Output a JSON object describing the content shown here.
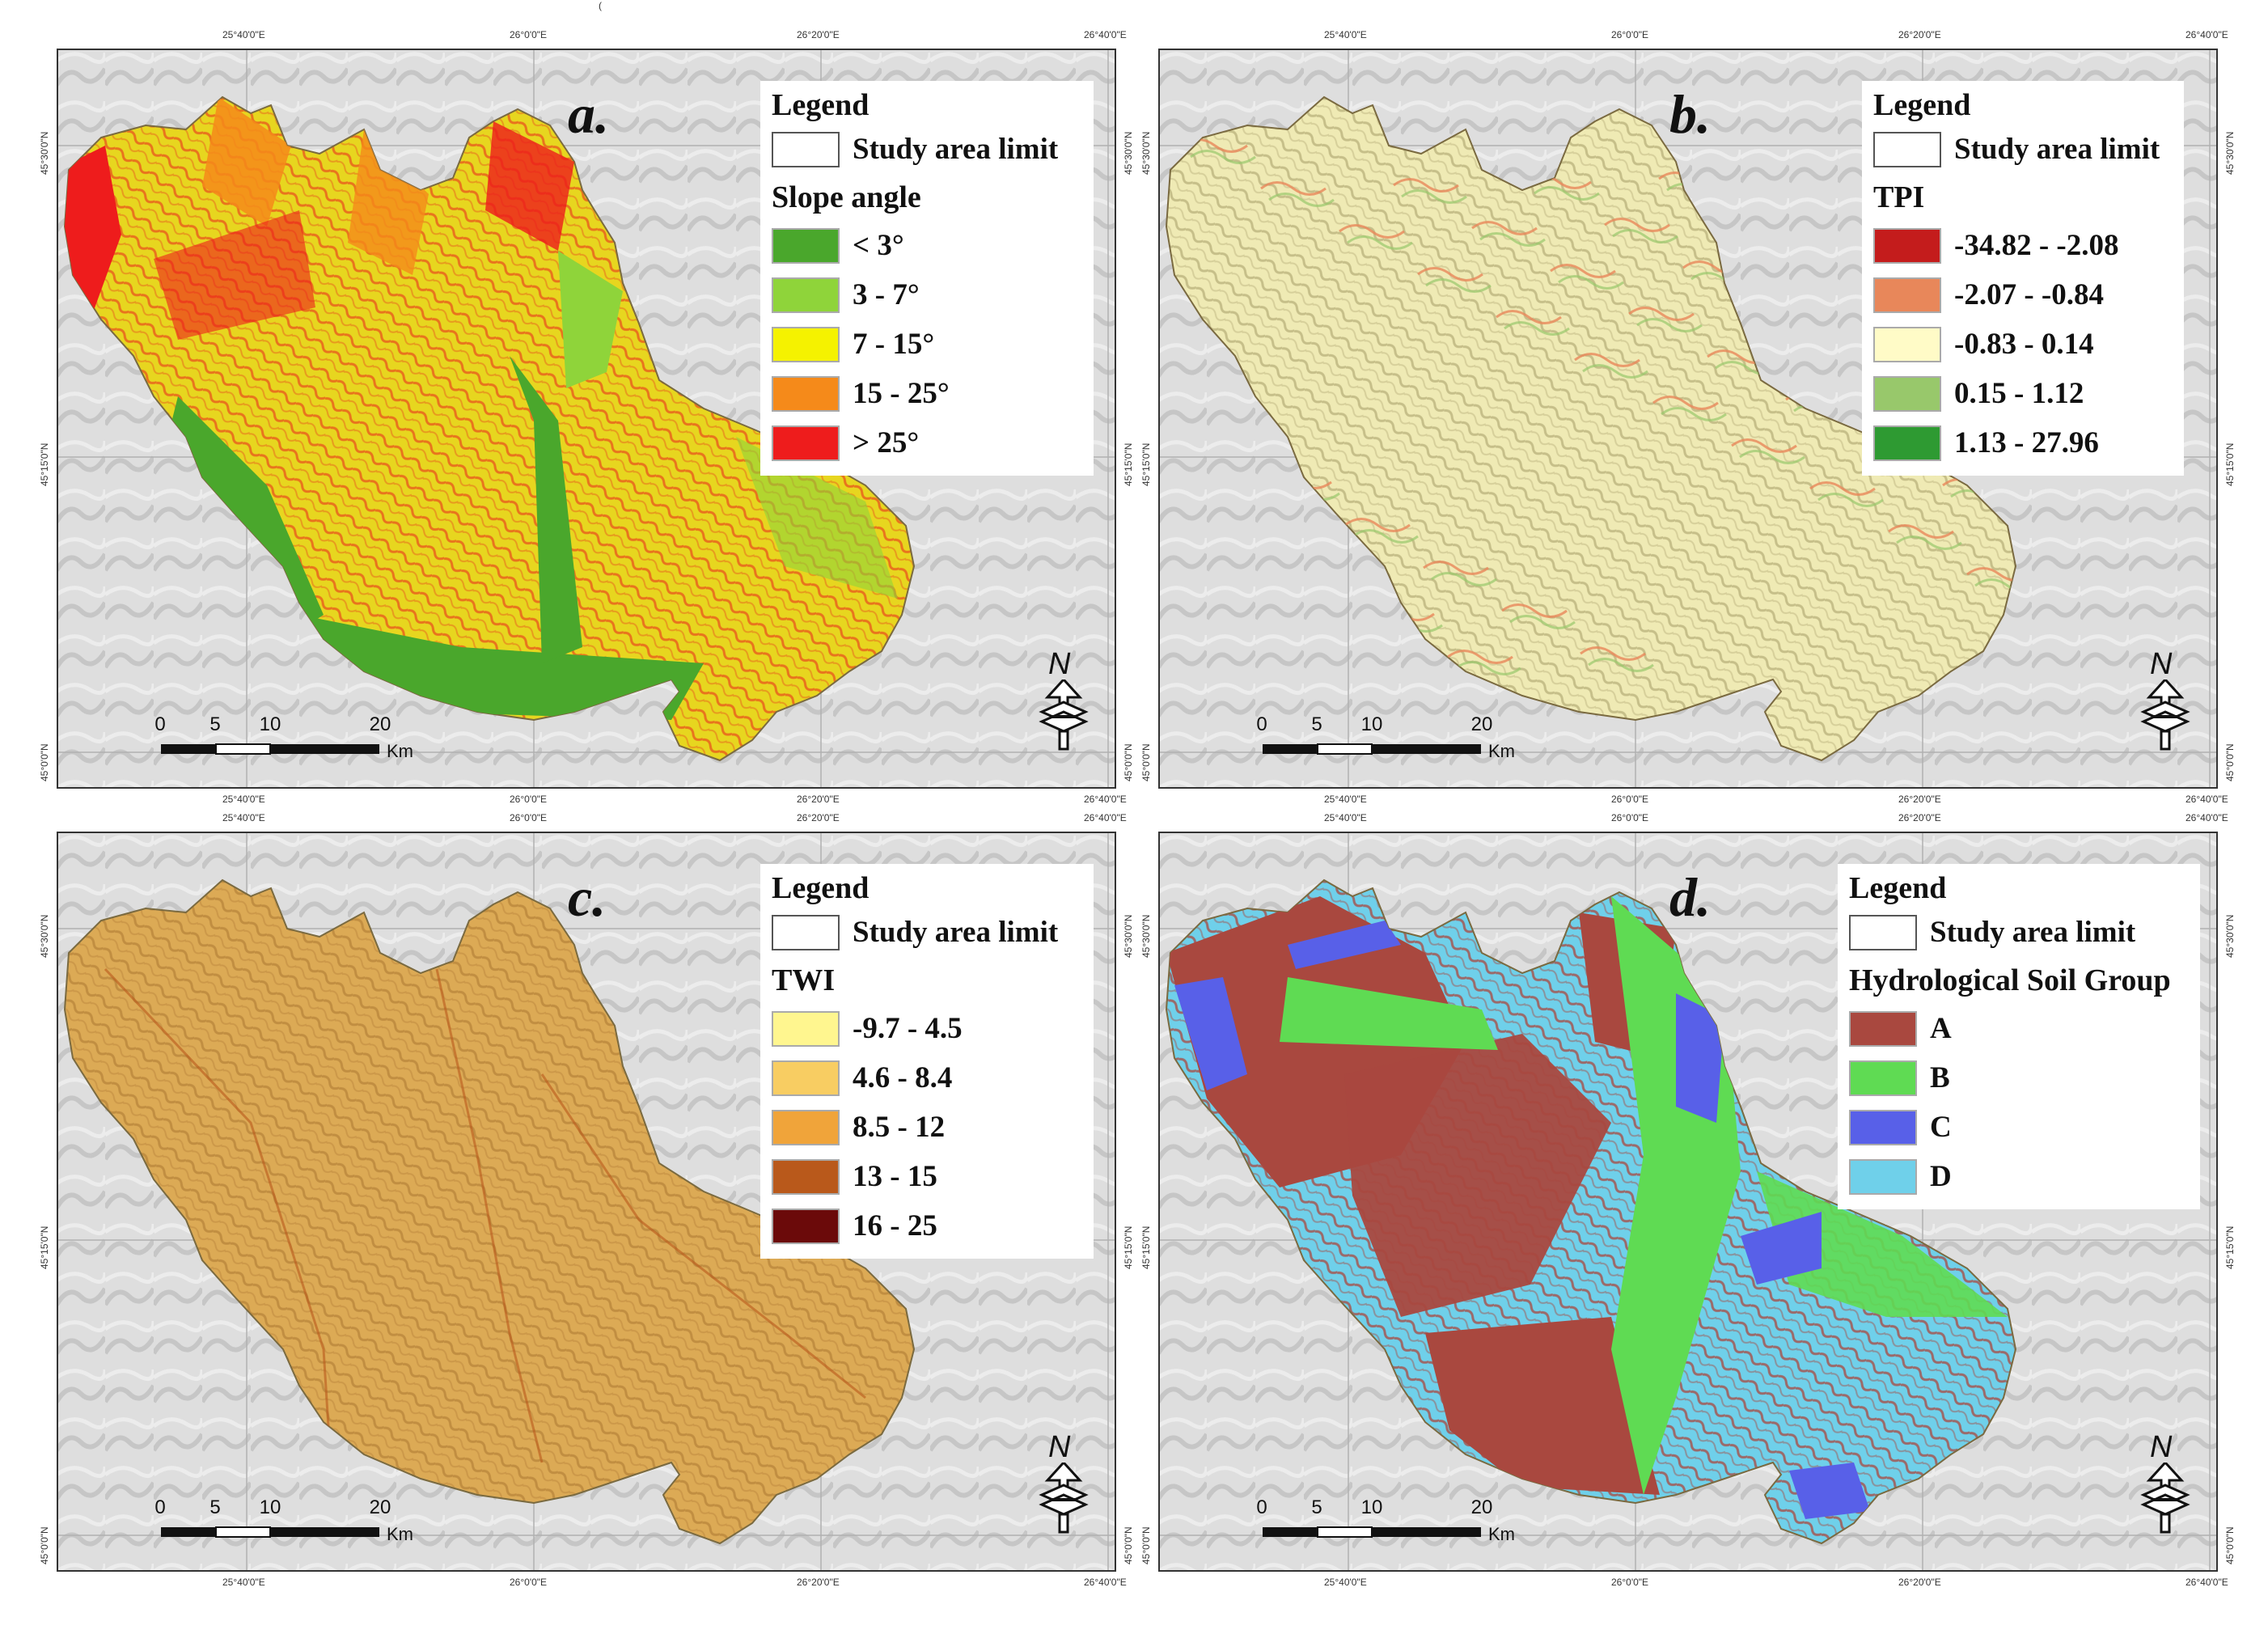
{
  "figure": {
    "top_note": "("
  },
  "panels": [
    {
      "id": "a",
      "letter": "a.",
      "legend_title": "Legend",
      "boundary_label": "Study area limit",
      "section_title": "Slope  angle",
      "classes": [
        {
          "label": "< 3°",
          "color": "#4aa72c"
        },
        {
          "label": "3 - 7°",
          "color": "#8fd43a"
        },
        {
          "label": "7 - 15°",
          "color": "#f5f200"
        },
        {
          "label": "15 - 25°",
          "color": "#f58a1a"
        },
        {
          "label": "> 25°",
          "color": "#ee1c1c"
        }
      ],
      "map_fill": "#e7d61f",
      "map_texture": "#e8521c",
      "lon_labels_top": [
        "25°40'0\"E",
        "26°0'0\"E",
        "26°20'0\"E",
        "26°40'0\"E"
      ],
      "lon_labels_bottom": [
        "25°40'0\"E",
        "26°0'0\"E",
        "26°20'0\"E",
        "26°40'0\"E"
      ],
      "lat_labels_left": [
        "45°30'0\"N",
        "45°15'0\"N",
        "45°0'0\"N"
      ],
      "lat_labels_right": [
        "45°30'0\"N",
        "45°15'0\"N",
        "45°0'0\"N"
      ],
      "scale_ticks": [
        "0",
        "5",
        "10",
        "20"
      ],
      "scale_unit": "Km",
      "north_letter": "N"
    },
    {
      "id": "b",
      "letter": "b.",
      "legend_title": "Legend",
      "boundary_label": "Study area limit",
      "section_title": "TPI",
      "classes": [
        {
          "label": "-34.82 - -2.08",
          "color": "#c41c1c"
        },
        {
          "label": "-2.07 - -0.84",
          "color": "#e8875a"
        },
        {
          "label": "-0.83 - 0.14",
          "color": "#fffbc7"
        },
        {
          "label": "0.15 - 1.12",
          "color": "#98c86b"
        },
        {
          "label": "1.13 - 27.96",
          "color": "#2e9a32"
        }
      ],
      "map_fill": "#efeab4",
      "map_texture": "#b8b07a",
      "lon_labels_top": [
        "25°40'0\"E",
        "26°0'0\"E",
        "26°20'0\"E",
        "26°40'0\"E"
      ],
      "lon_labels_bottom": [
        "25°40'0\"E",
        "26°0'0\"E",
        "26°20'0\"E",
        "26°40'0\"E"
      ],
      "lat_labels_left": [
        "45°30'0\"N",
        "45°15'0\"N",
        "45°0'0\"N"
      ],
      "lat_labels_right": [
        "45°30'0\"N",
        "45°15'0\"N",
        "45°0'0\"N"
      ],
      "scale_ticks": [
        "0",
        "5",
        "10",
        "20"
      ],
      "scale_unit": "Km",
      "north_letter": "N"
    },
    {
      "id": "c",
      "letter": "c.",
      "legend_title": "Legend",
      "boundary_label": "Study area limit",
      "section_title": "TWI",
      "classes": [
        {
          "label": "-9.7 - 4.5",
          "color": "#fff68f"
        },
        {
          "label": "4.6 - 8.4",
          "color": "#f8cd62"
        },
        {
          "label": "8.5 - 12",
          "color": "#f0a43a"
        },
        {
          "label": "13 - 15",
          "color": "#b9591b"
        },
        {
          "label": "16 - 25",
          "color": "#6b0a0a"
        }
      ],
      "map_fill": "#dcaa55",
      "map_texture": "#b8843a",
      "lon_labels_top": [
        "25°40'0\"E",
        "26°0'0\"E",
        "26°20'0\"E",
        "26°40'0\"E"
      ],
      "lon_labels_bottom": [
        "25°40'0\"E",
        "26°0'0\"E",
        "26°20'0\"E",
        "26°40'0\"E"
      ],
      "lat_labels_left": [
        "45°30'0\"N",
        "45°15'0\"N",
        "45°0'0\"N"
      ],
      "lat_labels_right": [
        "45°30'0\"N",
        "45°15'0\"N",
        "45°0'0\"N"
      ],
      "scale_ticks": [
        "0",
        "5",
        "10",
        "20"
      ],
      "scale_unit": "Km",
      "north_letter": "N"
    },
    {
      "id": "d",
      "letter": "d.",
      "legend_title": "Legend",
      "boundary_label": "Study area limit",
      "section_title": "Hydrological Soil Group",
      "classes": [
        {
          "label": "A",
          "color": "#a9483f"
        },
        {
          "label": "B",
          "color": "#5fdb53"
        },
        {
          "label": "C",
          "color": "#5860e8"
        },
        {
          "label": "D",
          "color": "#6fd0ea"
        }
      ],
      "map_fill": "#6fd0ea",
      "map_texture": "#a9483f",
      "lon_labels_top": [
        "25°40'0\"E",
        "26°0'0\"E",
        "26°20'0\"E",
        "26°40'0\"E"
      ],
      "lon_labels_bottom": [
        "25°40'0\"E",
        "26°0'0\"E",
        "26°20'0\"E",
        "26°40'0\"E"
      ],
      "lat_labels_left": [
        "45°30'0\"N",
        "45°15'0\"N",
        "45°0'0\"N"
      ],
      "lat_labels_right": [
        "45°30'0\"N",
        "45°15'0\"N",
        "45°0'0\"N"
      ],
      "scale_ticks": [
        "0",
        "5",
        "10",
        "20"
      ],
      "scale_unit": "Km",
      "north_letter": "N"
    }
  ]
}
